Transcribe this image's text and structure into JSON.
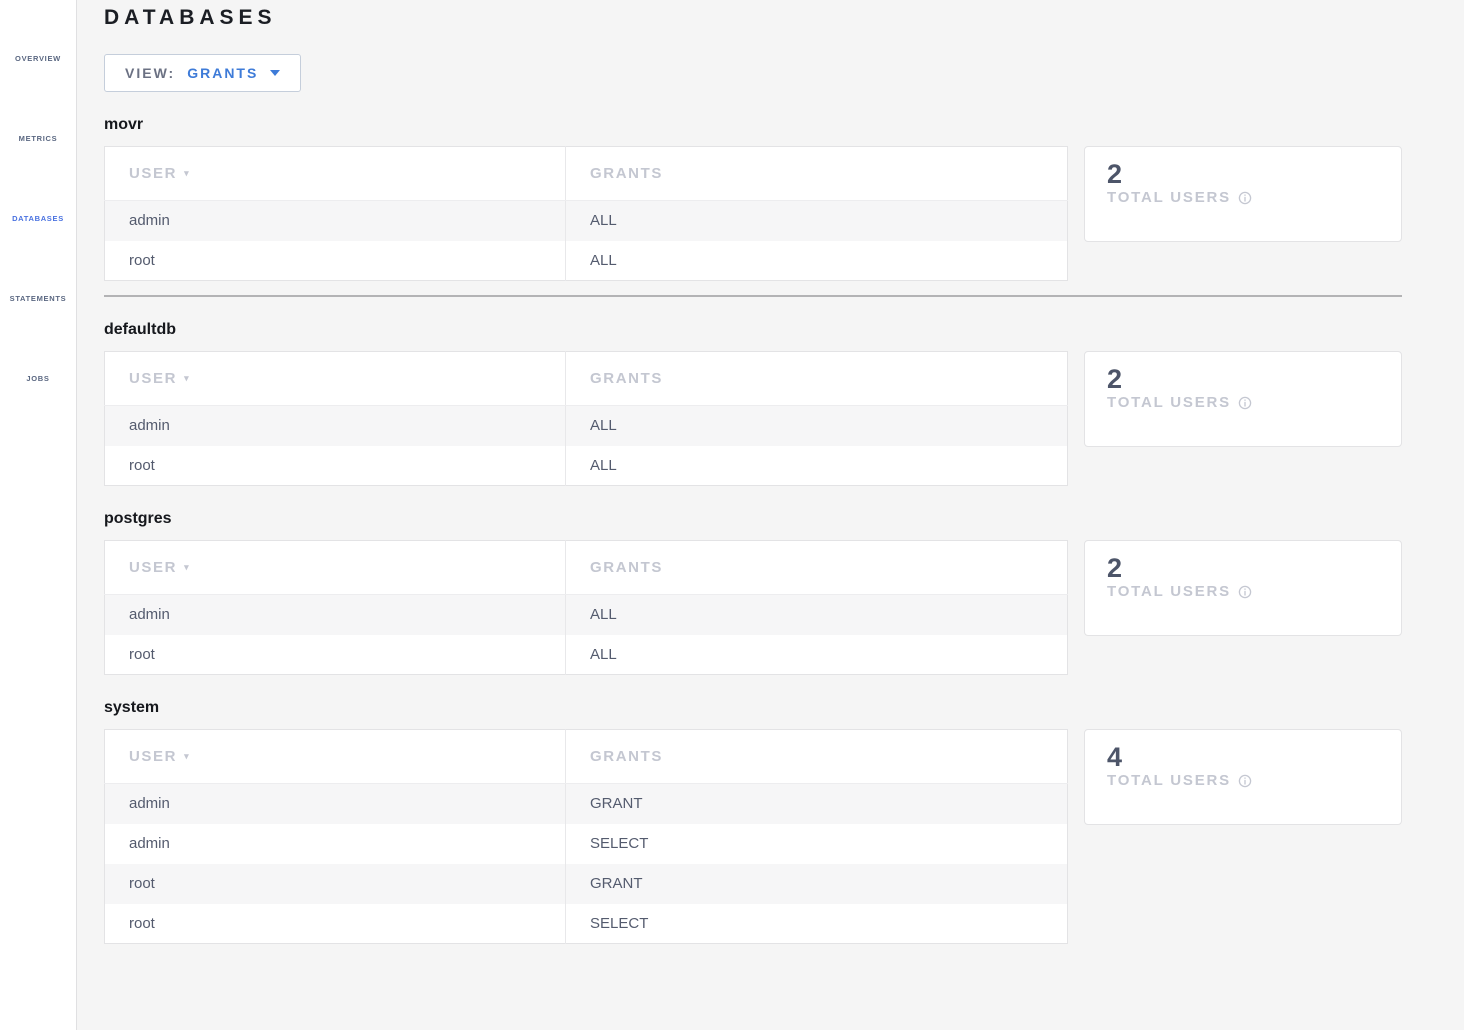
{
  "header": {
    "title": "DATABASES"
  },
  "view_selector": {
    "prefix": "VIEW:",
    "value": "GRANTS",
    "caret_icon": "chevron-down-icon"
  },
  "sidebar": {
    "items": [
      {
        "id": "overview",
        "label": "OVERVIEW",
        "icon": "home-icon",
        "active": false
      },
      {
        "id": "metrics",
        "label": "METRICS",
        "icon": "metrics-icon",
        "active": false
      },
      {
        "id": "databases",
        "label": "DATABASES",
        "icon": "databases-icon",
        "active": true
      },
      {
        "id": "statements",
        "label": "STATEMENTS",
        "icon": "statements-icon",
        "active": false
      },
      {
        "id": "jobs",
        "label": "JOBS",
        "icon": "jobs-icon",
        "active": false
      }
    ]
  },
  "table": {
    "columns": [
      "USER",
      "GRANTS"
    ],
    "sort_caret_icon": "sort-caret-icon"
  },
  "summary": {
    "label": "TOTAL USERS",
    "info_icon": "info-icon"
  },
  "sections": [
    {
      "name": "movr",
      "total_users": "2",
      "divider_after": true,
      "rows": [
        {
          "user": "admin",
          "grants": "ALL"
        },
        {
          "user": "root",
          "grants": "ALL"
        }
      ]
    },
    {
      "name": "defaultdb",
      "total_users": "2",
      "divider_after": false,
      "rows": [
        {
          "user": "admin",
          "grants": "ALL"
        },
        {
          "user": "root",
          "grants": "ALL"
        }
      ]
    },
    {
      "name": "postgres",
      "total_users": "2",
      "divider_after": false,
      "rows": [
        {
          "user": "admin",
          "grants": "ALL"
        },
        {
          "user": "root",
          "grants": "ALL"
        }
      ]
    },
    {
      "name": "system",
      "total_users": "4",
      "divider_after": false,
      "rows": [
        {
          "user": "admin",
          "grants": "GRANT"
        },
        {
          "user": "admin",
          "grants": "SELECT"
        },
        {
          "user": "root",
          "grants": "GRANT"
        },
        {
          "user": "root",
          "grants": "SELECT"
        }
      ]
    }
  ],
  "colors": {
    "accent_blue": "#3e7bd8",
    "sidebar_active_blue": "#4a72e0",
    "title_dark": "#1b1e24",
    "cell_text": "#545b6e",
    "muted_header_gray": "#c4c7d1",
    "row_stripe": "#f6f6f7",
    "page_background": "#f5f5f5",
    "divider_gray": "#b3b3b5"
  }
}
